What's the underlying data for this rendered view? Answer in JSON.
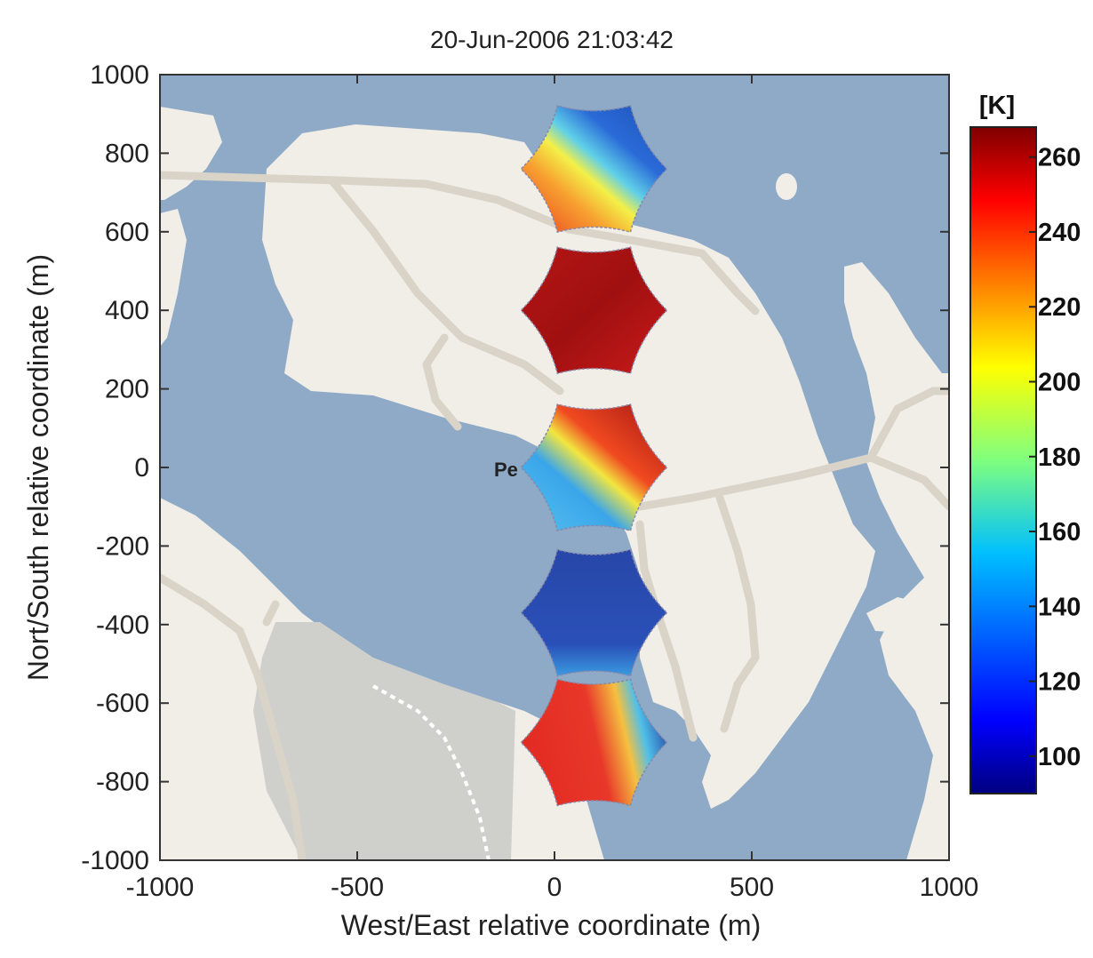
{
  "chart_data": {
    "type": "heatmap",
    "title": "20-Jun-2006 21:03:42",
    "xlabel": "West/East relative coordinate (m)",
    "ylabel": "Nort/South relative coordinate (m)",
    "xlim": [
      -1000,
      1000
    ],
    "ylim": [
      -1000,
      1000
    ],
    "x_ticks": [
      -1000,
      -500,
      0,
      500,
      1000
    ],
    "y_ticks": [
      1000,
      800,
      600,
      400,
      200,
      0,
      -200,
      -400,
      -600,
      -800,
      -1000
    ],
    "grid": false,
    "background": "street map (water, land, roads)",
    "map_label": "Pe",
    "colorbar": {
      "label": "[K]",
      "range": [
        90,
        268
      ],
      "ticks": [
        260,
        240,
        220,
        200,
        180,
        160,
        140,
        120,
        100
      ],
      "colormap": "jet"
    },
    "regions": [
      {
        "center": [
          100,
          760
        ],
        "gradient": "blue (north-east) to red-orange (south-west)",
        "min": 115,
        "max": 240
      },
      {
        "center": [
          100,
          400
        ],
        "gradient": "uniform dark red",
        "min": 250,
        "max": 265
      },
      {
        "center": [
          100,
          0
        ],
        "gradient": "dark red (north-east) to light blue (south-west)",
        "min": 150,
        "max": 262
      },
      {
        "center": [
          100,
          -370
        ],
        "gradient": "uniform blue",
        "min": 115,
        "max": 140
      },
      {
        "center": [
          100,
          -700
        ],
        "gradient": "red (west) to blue (east)",
        "min": 120,
        "max": 245
      }
    ]
  },
  "colors": {
    "water": "#8eaac6",
    "land": "#f1eee8",
    "road": "#dad4c8",
    "park": "#cfcfcb"
  }
}
